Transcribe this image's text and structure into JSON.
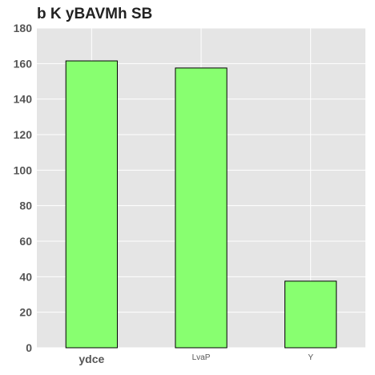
{
  "chart_data": {
    "type": "bar",
    "title": "b K yBAVMh SB",
    "categories": [
      "ydce",
      "LvaP",
      "Y"
    ],
    "values": [
      161.5,
      157.5,
      37.5
    ],
    "xlabel": "",
    "ylabel": "",
    "ylim": [
      0,
      180
    ],
    "yticks": [
      0,
      20,
      40,
      60,
      80,
      100,
      120,
      140,
      160,
      180
    ],
    "grid": true,
    "colors": {
      "bar_fill": "#88ff70",
      "bar_edge": "#000000",
      "plot_background": "#e5e5e5",
      "grid": "#ffffff"
    }
  }
}
